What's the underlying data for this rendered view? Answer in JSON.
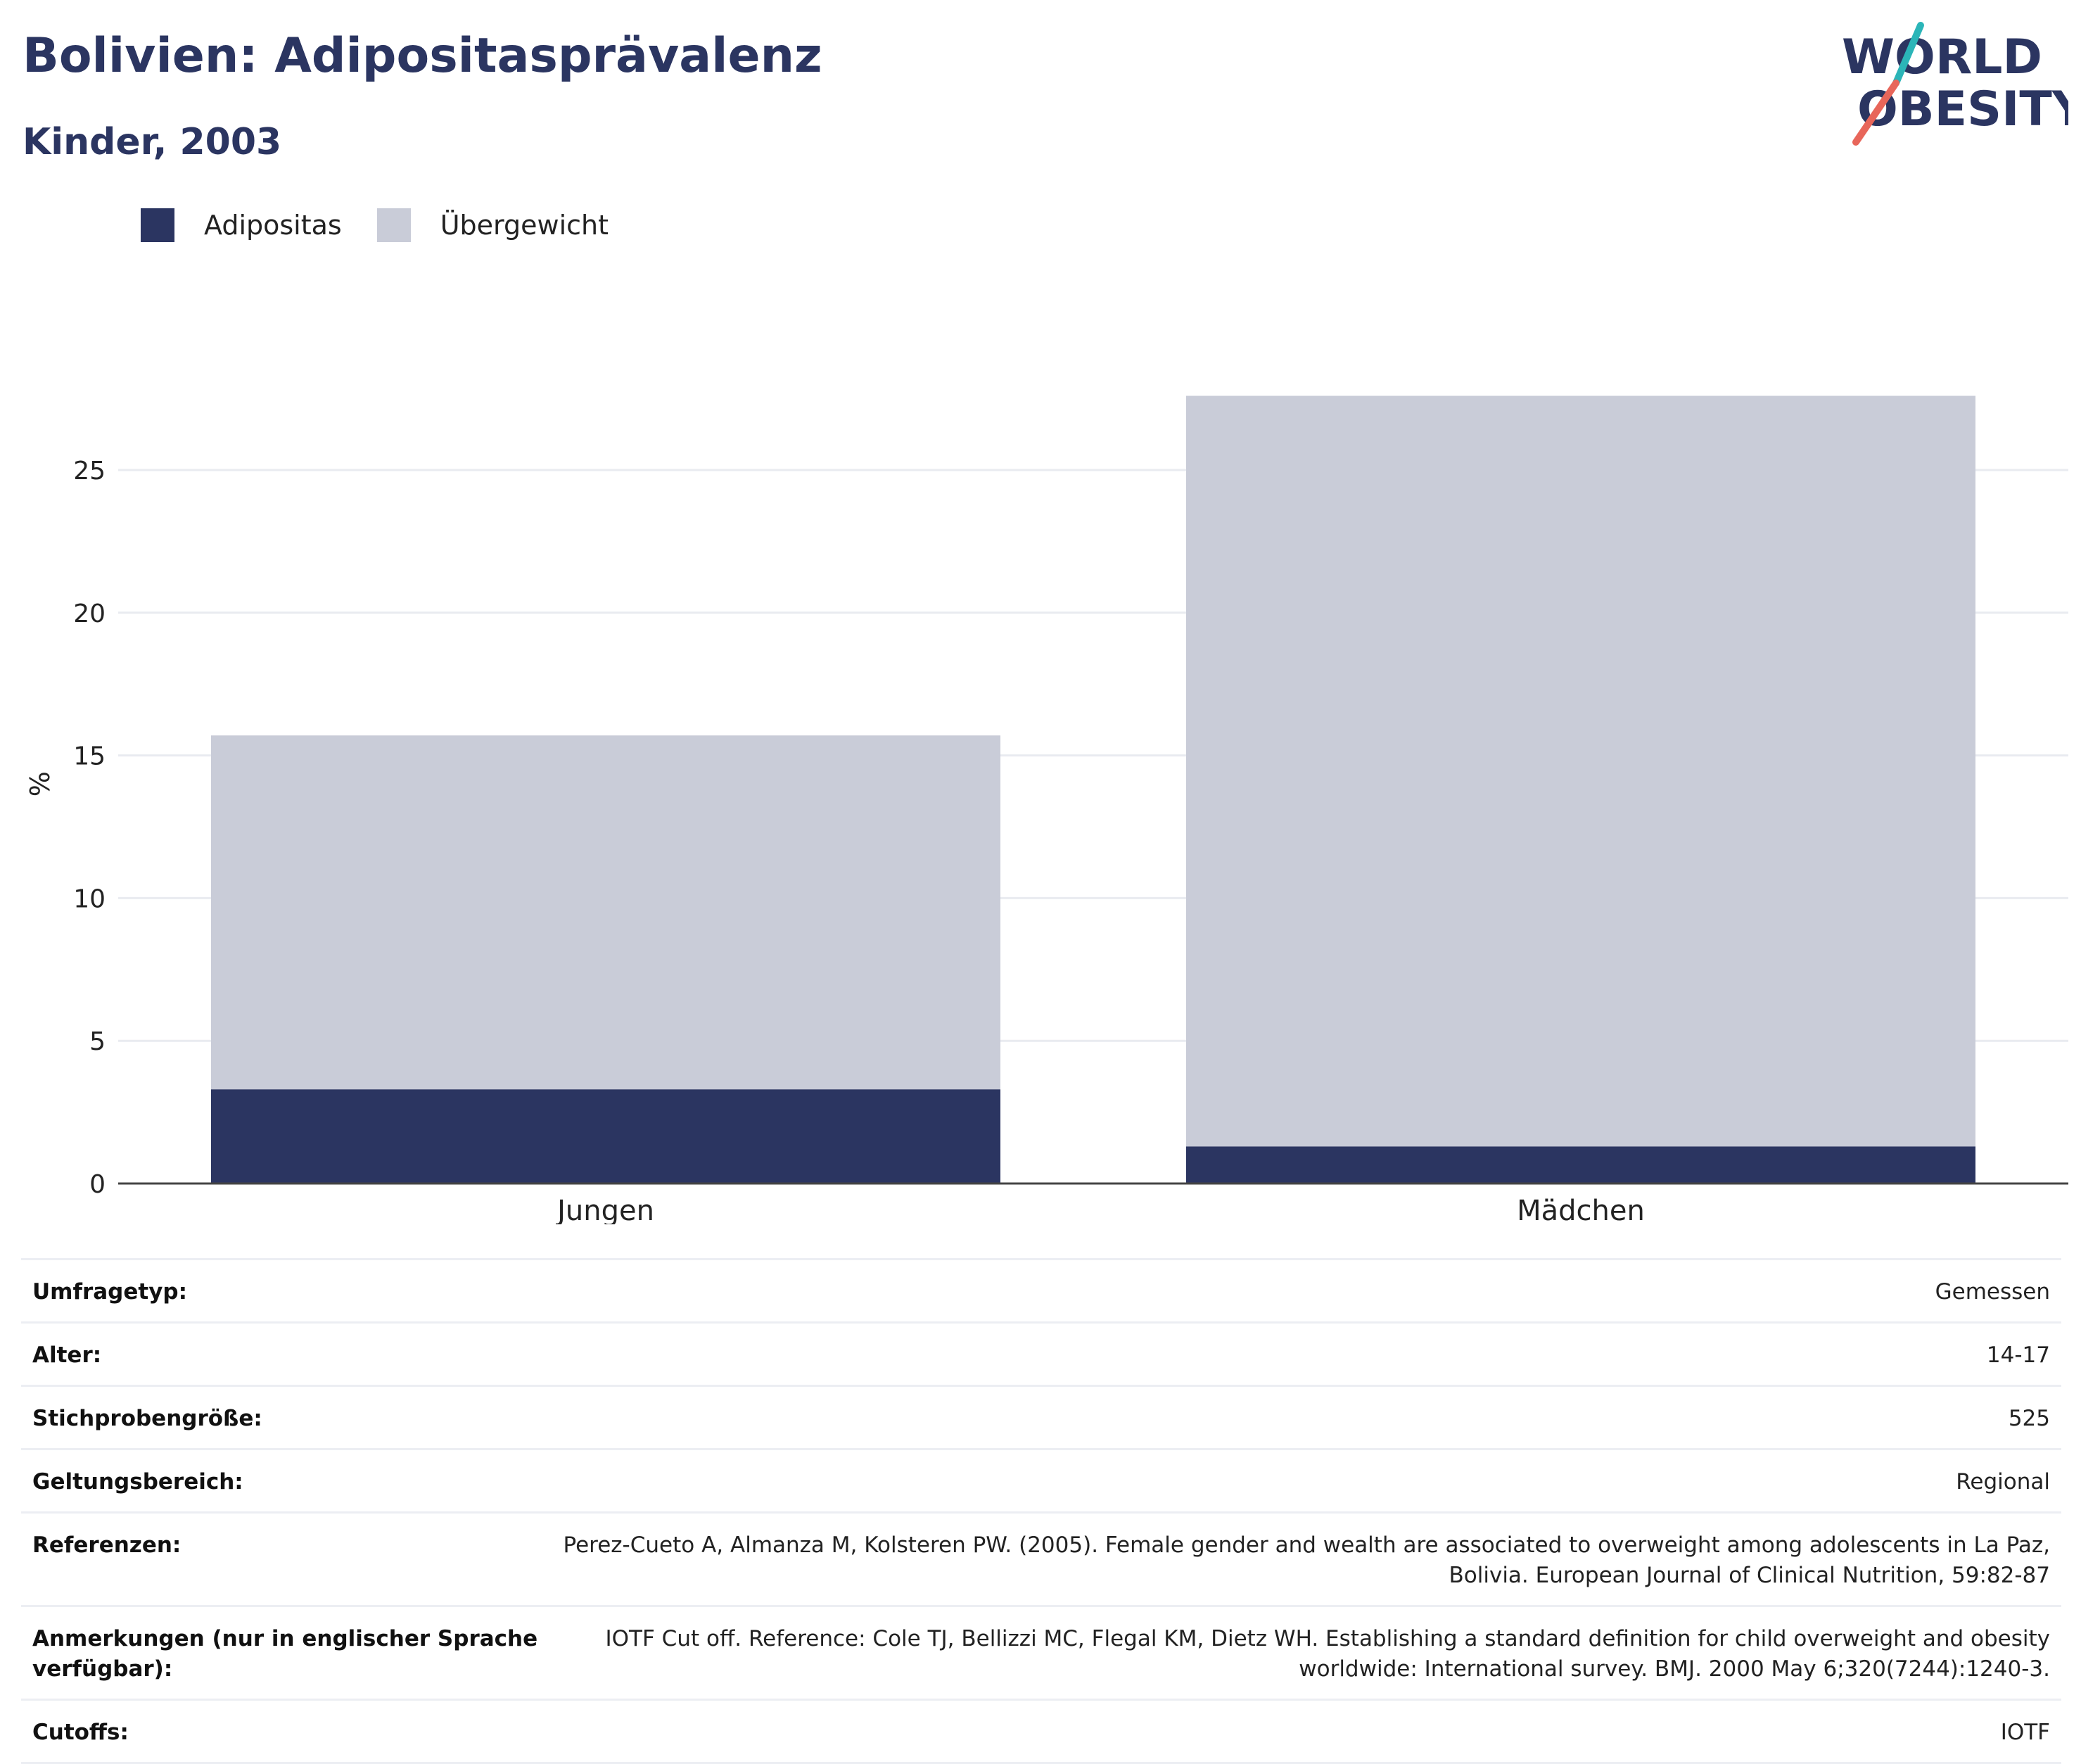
{
  "header": {
    "title": "Bolivien: Adipositasprävalenz",
    "subtitle": "Kinder, 2003"
  },
  "logo": {
    "line1": "WORLD",
    "line2": "OBESITY"
  },
  "colors": {
    "adipositas": "#2b3561",
    "uebergewicht": "#c9ccd8",
    "title": "#2b3561",
    "logo_teal": "#2bb5b8",
    "logo_coral": "#e8665a"
  },
  "legend": [
    {
      "label": "Adipositas",
      "color": "#2b3561"
    },
    {
      "label": "Übergewicht",
      "color": "#c9ccd8"
    }
  ],
  "chart_data": {
    "type": "bar",
    "stacked": true,
    "categories": [
      "Jungen",
      "Mädchen"
    ],
    "series": [
      {
        "name": "Adipositas",
        "values": [
          3.3,
          1.3
        ]
      },
      {
        "name": "Übergewicht",
        "values": [
          12.4,
          26.3
        ]
      }
    ],
    "ylabel": "%",
    "xlabel": "",
    "ylim": [
      0,
      28
    ],
    "yticks": [
      0,
      5,
      10,
      15,
      20,
      25
    ],
    "grid": true,
    "legend_position": "top-left"
  },
  "info": [
    {
      "label": "Umfragetyp:",
      "value": "Gemessen"
    },
    {
      "label": "Alter:",
      "value": "14-17"
    },
    {
      "label": "Stichprobengröße:",
      "value": "525"
    },
    {
      "label": "Geltungsbereich:",
      "value": "Regional"
    },
    {
      "label": "Referenzen:",
      "value": "Perez-Cueto A, Almanza M, Kolsteren PW. (2005). Female gender and wealth are associated to overweight among adolescents in La Paz, Bolivia. European Journal of Clinical Nutrition, 59:82-87"
    },
    {
      "label": "Anmerkungen (nur in englischer Sprache verfügbar):",
      "value": "IOTF Cut off. Reference: Cole TJ, Bellizzi MC, Flegal KM, Dietz WH. Establishing a standard definition for child overweight and obesity worldwide: International survey. BMJ. 2000 May 6;320(7244):1240-3."
    },
    {
      "label": "Cutoffs:",
      "value": "IOTF"
    }
  ]
}
